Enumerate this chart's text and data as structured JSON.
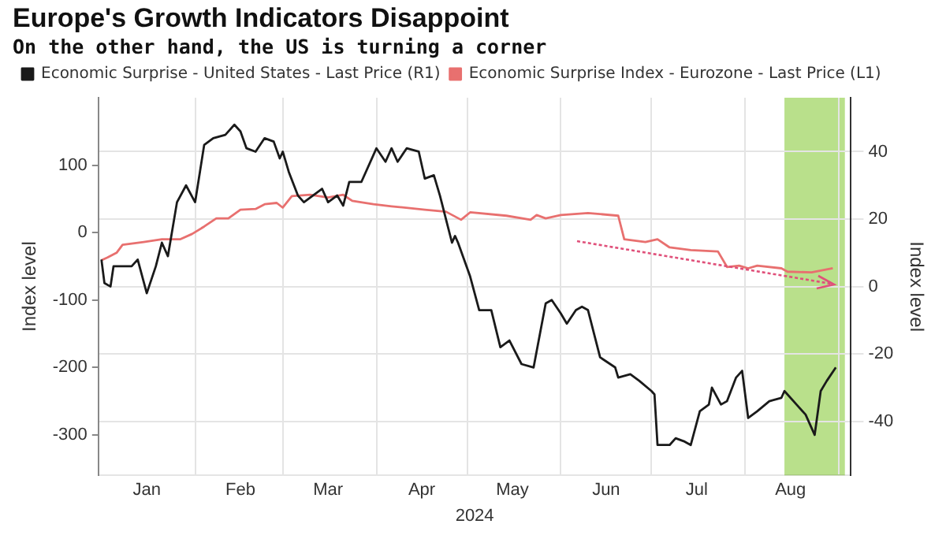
{
  "chart_data": {
    "type": "line",
    "title": "Europe's Growth Indicators Disappoint",
    "subtitle": "On the other hand, the US is turning a corner",
    "xlabel": "2024",
    "ylabel": "Index level",
    "y2label": "Index level",
    "xlim": [
      "2023-12-31",
      "2024-09-05"
    ],
    "xticks": [
      {
        "value": "2024-01-16",
        "label": "Jan"
      },
      {
        "value": "2024-02-01",
        "label": null
      },
      {
        "value": "2024-02-16",
        "label": "Feb"
      },
      {
        "value": "2024-03-01",
        "label": null
      },
      {
        "value": "2024-03-16",
        "label": "Mar"
      },
      {
        "value": "2024-04-01",
        "label": null
      },
      {
        "value": "2024-04-16",
        "label": "Apr"
      },
      {
        "value": "2024-05-01",
        "label": null
      },
      {
        "value": "2024-05-16",
        "label": "May"
      },
      {
        "value": "2024-06-01",
        "label": null
      },
      {
        "value": "2024-06-16",
        "label": "Jun"
      },
      {
        "value": "2024-07-01",
        "label": null
      },
      {
        "value": "2024-07-16",
        "label": "Jul"
      },
      {
        "value": "2024-08-01",
        "label": null
      },
      {
        "value": "2024-08-16",
        "label": "Aug"
      },
      {
        "value": "2024-09-01",
        "label": null
      }
    ],
    "ylim": [
      -360,
      200
    ],
    "yticks": [
      -300,
      -200,
      -100,
      0,
      100
    ],
    "y2lim": [
      -56,
      56
    ],
    "y2ticks": [
      -40,
      -20,
      0,
      20,
      40
    ],
    "grid": true,
    "legend": "top",
    "bands": [
      {
        "axis": "x",
        "from": "2024-08-14",
        "to": "2024-09-03",
        "color": "#a8d86e"
      }
    ],
    "series": [
      {
        "name": "Economic Surprise - United States - Last Price (R1)",
        "color": "#1a1a1a",
        "axis": "y2",
        "x": [
          "2024-01-01",
          "2024-01-02",
          "2024-01-04",
          "2024-01-05",
          "2024-01-07",
          "2024-01-11",
          "2024-01-13",
          "2024-01-16",
          "2024-01-19",
          "2024-01-21",
          "2024-01-23",
          "2024-01-26",
          "2024-01-29",
          "2024-02-01",
          "2024-02-04",
          "2024-02-07",
          "2024-02-11",
          "2024-02-14",
          "2024-02-16",
          "2024-02-18",
          "2024-02-21",
          "2024-02-24",
          "2024-02-27",
          "2024-02-29",
          "2024-03-01",
          "2024-03-03",
          "2024-03-06",
          "2024-03-08",
          "2024-03-11",
          "2024-03-14",
          "2024-03-16",
          "2024-03-19",
          "2024-03-21",
          "2024-03-23",
          "2024-03-27",
          "2024-04-01",
          "2024-04-04",
          "2024-04-06",
          "2024-04-08",
          "2024-04-11",
          "2024-04-15",
          "2024-04-17",
          "2024-04-20",
          "2024-04-22",
          "2024-04-24",
          "2024-04-26",
          "2024-04-27",
          "2024-04-28",
          "2024-05-02",
          "2024-05-05",
          "2024-05-09",
          "2024-05-12",
          "2024-05-15",
          "2024-05-19",
          "2024-05-23",
          "2024-05-27",
          "2024-05-29",
          "2024-06-01",
          "2024-06-03",
          "2024-06-06",
          "2024-06-08",
          "2024-06-10",
          "2024-06-14",
          "2024-06-19",
          "2024-06-20",
          "2024-06-24",
          "2024-06-27",
          "2024-07-01",
          "2024-07-02",
          "2024-07-03",
          "2024-07-07",
          "2024-07-09",
          "2024-07-12",
          "2024-07-14",
          "2024-07-17",
          "2024-07-20",
          "2024-07-21",
          "2024-07-24",
          "2024-07-26",
          "2024-07-29",
          "2024-07-31",
          "2024-08-02",
          "2024-08-05",
          "2024-08-09",
          "2024-08-13",
          "2024-08-14",
          "2024-08-18",
          "2024-08-21",
          "2024-08-24",
          "2024-08-26",
          "2024-08-28",
          "2024-08-31"
        ],
        "values": [
          8,
          1,
          0,
          6,
          6,
          6,
          8,
          -2,
          6,
          13,
          9,
          25,
          30,
          25,
          42,
          44,
          45,
          48,
          46,
          41,
          40,
          44,
          43,
          38,
          40,
          34,
          27,
          25,
          27,
          29,
          25,
          27,
          24,
          31,
          31,
          41,
          37,
          41,
          37,
          41,
          40,
          32,
          33,
          27,
          20,
          13,
          15,
          13,
          3,
          -7,
          -7,
          -18,
          -16,
          -23,
          -24,
          -5,
          -4,
          -8,
          -11,
          -7,
          -6,
          -7,
          -21,
          -24,
          -27,
          -26,
          -28,
          -31,
          -32,
          -47,
          -47,
          -45,
          -46,
          -47,
          -37,
          -35,
          -30,
          -35,
          -34,
          -27,
          -25,
          -39,
          -37,
          -34,
          -33,
          -31,
          -35,
          -38,
          -44,
          -31,
          -28,
          -24
        ]
      },
      {
        "name": "Economic Surprise Index - Eurozone - Last Price (L1)",
        "color": "#e8706f",
        "axis": "y",
        "x": [
          "2024-01-01",
          "2024-01-03",
          "2024-01-06",
          "2024-01-08",
          "2024-01-15",
          "2024-01-21",
          "2024-01-27",
          "2024-01-31",
          "2024-02-04",
          "2024-02-08",
          "2024-02-12",
          "2024-02-16",
          "2024-02-21",
          "2024-02-24",
          "2024-02-28",
          "2024-03-01",
          "2024-03-04",
          "2024-03-10",
          "2024-03-16",
          "2024-03-21",
          "2024-03-24",
          "2024-03-31",
          "2024-04-06",
          "2024-04-17",
          "2024-04-24",
          "2024-04-29",
          "2024-05-02",
          "2024-05-14",
          "2024-05-22",
          "2024-05-24",
          "2024-05-27",
          "2024-06-01",
          "2024-06-10",
          "2024-06-20",
          "2024-06-22",
          "2024-06-29",
          "2024-07-03",
          "2024-07-07",
          "2024-07-14",
          "2024-07-23",
          "2024-07-26",
          "2024-07-30",
          "2024-08-02",
          "2024-08-05",
          "2024-08-13",
          "2024-08-15",
          "2024-08-23",
          "2024-08-30"
        ],
        "values": [
          -41,
          -37,
          -30,
          -18,
          -14,
          -10,
          -10,
          -2,
          9,
          21,
          21,
          34,
          35,
          42,
          44,
          37,
          54,
          56,
          52,
          56,
          47,
          42,
          39,
          34,
          31,
          19,
          30,
          25,
          19,
          26,
          21,
          26,
          29,
          25,
          -10,
          -14,
          -10,
          -22,
          -26,
          -28,
          -51,
          -49,
          -53,
          -49,
          -53,
          -58,
          -59,
          -53
        ]
      }
    ]
  }
}
